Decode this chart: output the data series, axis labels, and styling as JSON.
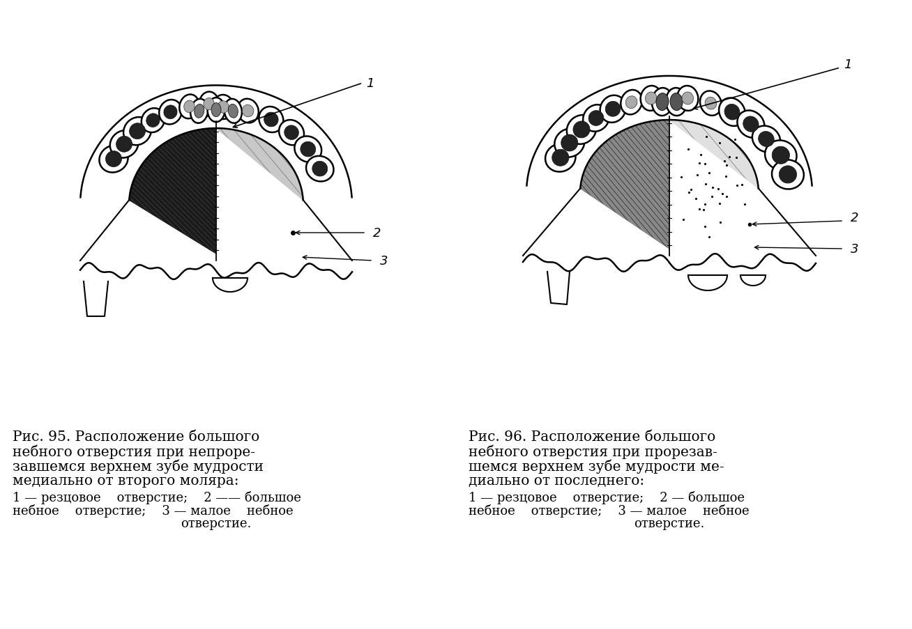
{
  "background_color": "#ffffff",
  "fig_width": 13.08,
  "fig_height": 9.04,
  "caption_left": {
    "line1": "Рис. 95. Расположение большого",
    "line2": "небного отверстия при непроре-",
    "line3": "завшемся верхнем зубе мудрости",
    "line4": "медиально от второго моляра:",
    "line5": "1 — резцовое    отверстие;    2 —— большое",
    "line6": "небное    отверстие;    3 — малое    небное",
    "line7": "отверстие."
  },
  "caption_right": {
    "line1": "Рис. 96. Расположение большого",
    "line2": "небного отверстия при прорезав-",
    "line3": "шемся верхнем зубе мудрости ме-",
    "line4": "диально от последнего:",
    "line5": "1 — резцовое    отверстие;    2 — большое",
    "line6": "небное    отверстие;    3 — малое    небное",
    "line7": "отверстие."
  },
  "text_color": "#000000",
  "title_fontsize": 14.5,
  "legend_fontsize": 13.0,
  "label_fontsize": 13.0
}
